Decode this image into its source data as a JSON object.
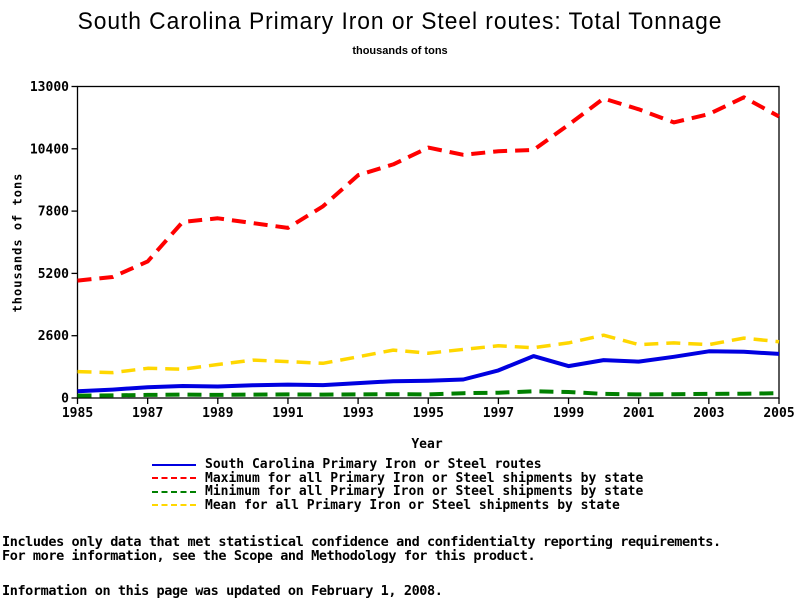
{
  "chart_data": {
    "type": "line",
    "title": "South Carolina Primary Iron or Steel routes: Total Tonnage",
    "subtitle": "thousands of tons",
    "xlabel": "Year",
    "ylabel": "thousands of tons",
    "xlim": [
      1985,
      2005
    ],
    "ylim": [
      0,
      13000
    ],
    "x_ticks": [
      1985,
      1987,
      1989,
      1991,
      1993,
      1995,
      1997,
      1999,
      2001,
      2003,
      2005
    ],
    "y_ticks": [
      0,
      2600,
      5200,
      7800,
      10400,
      13000
    ],
    "grid": false,
    "legend_position": "bottom",
    "x": [
      1985,
      1986,
      1987,
      1988,
      1989,
      1990,
      1991,
      1992,
      1993,
      1994,
      1995,
      1996,
      1997,
      1998,
      1999,
      2000,
      2001,
      2002,
      2003,
      2004,
      2005
    ],
    "series": [
      {
        "name": "South Carolina Primary Iron or Steel routes",
        "color": "#0000E0",
        "style": "solid",
        "values": [
          280,
          350,
          450,
          500,
          480,
          530,
          560,
          540,
          620,
          700,
          720,
          770,
          1150,
          1750,
          1330,
          1580,
          1520,
          1720,
          1950,
          1930,
          1840
        ]
      },
      {
        "name": "Maximum for all Primary Iron or Steel shipments by state",
        "color": "#FF0000",
        "style": "dashed",
        "values": [
          4900,
          5050,
          5700,
          7350,
          7500,
          7300,
          7100,
          8000,
          9300,
          9750,
          10450,
          10150,
          10300,
          10350,
          11400,
          12500,
          12050,
          11500,
          11850,
          12550,
          11750
        ]
      },
      {
        "name": "Minimum for all Primary Iron or Steel shipments by state",
        "color": "#008000",
        "style": "dashed",
        "values": [
          100,
          110,
          130,
          140,
          130,
          140,
          150,
          140,
          150,
          160,
          150,
          200,
          220,
          280,
          250,
          170,
          150,
          160,
          170,
          180,
          200
        ]
      },
      {
        "name": "Mean for all Primary Iron or Steel shipments by state",
        "color": "#FFD700",
        "style": "dashed",
        "values": [
          1100,
          1060,
          1240,
          1200,
          1400,
          1580,
          1520,
          1450,
          1720,
          2000,
          1870,
          2030,
          2180,
          2100,
          2300,
          2620,
          2230,
          2300,
          2230,
          2500,
          2350
        ]
      }
    ]
  },
  "footnotes": [
    "Includes only data that met statistical confidence and confidentialty reporting requirements.",
    "For more information, see the Scope and Methodology for this product.",
    "Information on this page was updated on February 1, 2008."
  ]
}
